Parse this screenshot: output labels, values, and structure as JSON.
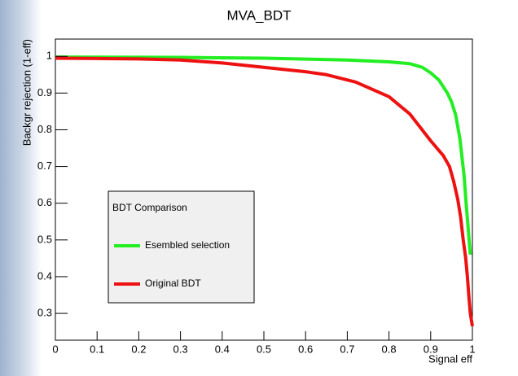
{
  "chart_data": {
    "type": "line",
    "title": "MVA_BDT",
    "x_label": "Signal eff",
    "y_label": "Backgr rejection (1-eff)",
    "legend_title": "BDT Comparison",
    "xlim": [
      0,
      1
    ],
    "xticks": [
      0,
      0.1,
      0.2,
      0.3,
      0.4,
      0.5,
      0.6,
      0.7,
      0.8,
      0.9,
      1
    ],
    "ylim": [
      0.227,
      1.047
    ],
    "yticks": [
      0.3,
      0.4,
      0.5,
      0.6,
      0.7,
      0.8,
      0.9,
      1
    ],
    "grid": false,
    "series": [
      {
        "name": "Esembled selection",
        "color": "#22ee22",
        "x": [
          0,
          0.3,
          0.5,
          0.7,
          0.8,
          0.85,
          0.88,
          0.9,
          0.92,
          0.94,
          0.95,
          0.96,
          0.97,
          0.98,
          0.985,
          0.99,
          0.995
        ],
        "values": [
          0.998,
          0.997,
          0.995,
          0.99,
          0.985,
          0.98,
          0.97,
          0.955,
          0.935,
          0.9,
          0.876,
          0.84,
          0.776,
          0.676,
          0.6,
          0.53,
          0.46
        ]
      },
      {
        "name": "Original BDT",
        "color": "#ee1111",
        "x": [
          0,
          0.1,
          0.2,
          0.3,
          0.4,
          0.5,
          0.6,
          0.65,
          0.72,
          0.8,
          0.85,
          0.9,
          0.93,
          0.945,
          0.955,
          0.965,
          0.972,
          0.978,
          0.984,
          0.988,
          0.992,
          0.995,
          1.0
        ],
        "values": [
          0.995,
          0.994,
          0.993,
          0.99,
          0.982,
          0.97,
          0.958,
          0.95,
          0.93,
          0.89,
          0.843,
          0.77,
          0.73,
          0.7,
          0.66,
          0.61,
          0.56,
          0.5,
          0.45,
          0.4,
          0.34,
          0.3,
          0.265
        ]
      }
    ]
  }
}
